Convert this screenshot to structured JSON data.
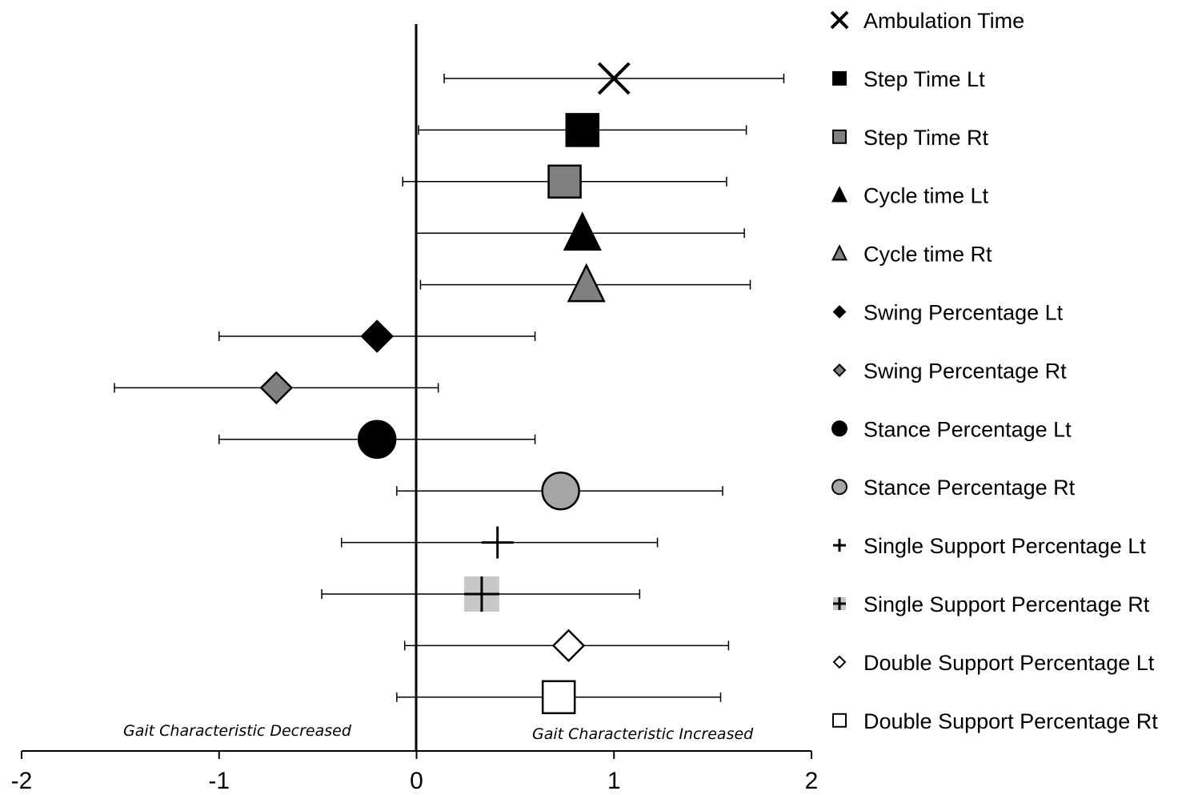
{
  "chart_data": {
    "type": "scatter",
    "xlim": [
      -2,
      2
    ],
    "x_ticks": [
      -2,
      -1,
      0,
      1,
      2
    ],
    "x_tick_labels": [
      "-2",
      "-1",
      "0",
      "1",
      "2"
    ],
    "grid": false,
    "legend_position": "right",
    "annotations": {
      "left": "Gait Characteristic Decreased",
      "right": "Gait Characteristic Increased"
    },
    "series": [
      {
        "name": "Ambulation Time",
        "marker": "x",
        "fill": "#000000",
        "value": 1.0,
        "ci": [
          0.14,
          1.86
        ]
      },
      {
        "name": "Step Time Lt",
        "marker": "square",
        "fill": "#000000",
        "value": 0.84,
        "ci": [
          0.01,
          1.67
        ]
      },
      {
        "name": "Step Time Rt",
        "marker": "square",
        "fill": "#808080",
        "value": 0.75,
        "ci": [
          -0.07,
          1.57
        ]
      },
      {
        "name": "Cycle time Lt",
        "marker": "triangle",
        "fill": "#000000",
        "value": 0.84,
        "ci": [
          0.0,
          1.66
        ]
      },
      {
        "name": "Cycle time Rt",
        "marker": "triangle",
        "fill": "#808080",
        "value": 0.86,
        "ci": [
          0.02,
          1.69
        ]
      },
      {
        "name": "Swing Percentage Lt",
        "marker": "diamond",
        "fill": "#000000",
        "value": -0.2,
        "ci": [
          -1.0,
          0.6
        ]
      },
      {
        "name": "Swing Percentage Rt",
        "marker": "diamond",
        "fill": "#808080",
        "value": -0.71,
        "ci": [
          -1.53,
          0.11
        ]
      },
      {
        "name": "Stance Percentage Lt",
        "marker": "circle",
        "fill": "#000000",
        "value": -0.2,
        "ci": [
          -1.0,
          0.6
        ]
      },
      {
        "name": "Stance Percentage Rt",
        "marker": "circle",
        "fill": "#a6a6a6",
        "value": 0.73,
        "ci": [
          -0.1,
          1.55
        ]
      },
      {
        "name": "Single Support Percentage Lt",
        "marker": "plus",
        "fill": "none",
        "value": 0.41,
        "ci": [
          -0.38,
          1.22
        ]
      },
      {
        "name": "Single Support Percentage Rt",
        "marker": "plus-square",
        "fill": "#c8c8c8",
        "value": 0.33,
        "ci": [
          -0.48,
          1.13
        ]
      },
      {
        "name": "Double Support Percentage Lt",
        "marker": "diamond",
        "fill": "#ffffff",
        "value": 0.77,
        "ci": [
          -0.06,
          1.58
        ]
      },
      {
        "name": "Double Support Percentage Rt",
        "marker": "square",
        "fill": "#ffffff",
        "value": 0.72,
        "ci": [
          -0.1,
          1.54
        ]
      }
    ]
  }
}
